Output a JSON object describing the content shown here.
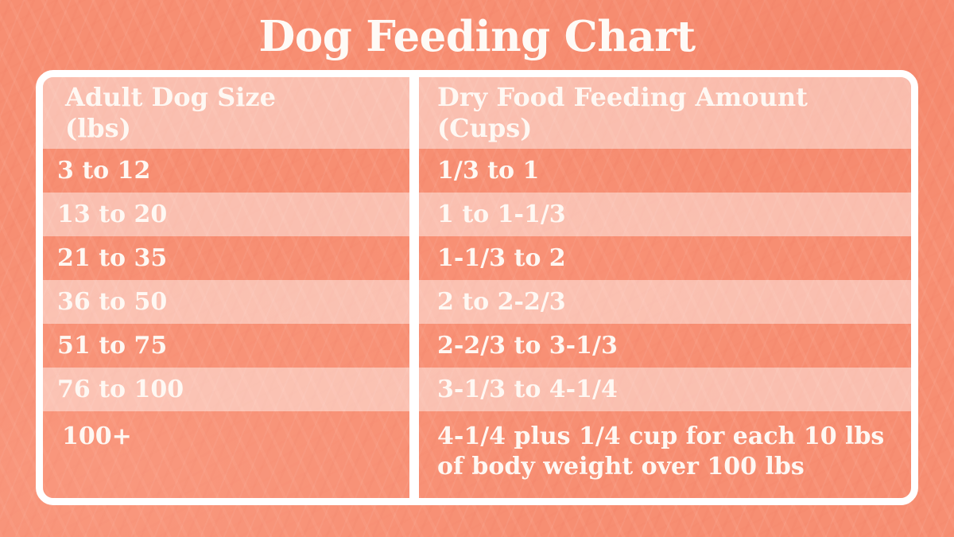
{
  "page": {
    "title": "Dog Feeding Chart"
  },
  "colors": {
    "background_coral": "#F78E72",
    "light_band": "#FBBFAE",
    "frame_white": "#FFFFFF",
    "text_white": "#FEF8F3"
  },
  "chart_data": {
    "type": "table",
    "title": "Dog Feeding Chart",
    "columns": [
      {
        "header_line1": "Adult Dog Size",
        "header_line2": "(lbs)"
      },
      {
        "header_line1": "Dry Food Feeding Amount",
        "header_line2": "(Cups)"
      }
    ],
    "rows": [
      {
        "size": "3 to 12",
        "amount": "1/3 to 1"
      },
      {
        "size": "13 to 20",
        "amount": "1 to 1-1/3"
      },
      {
        "size": "21 to 35",
        "amount": "1-1/3 to 2"
      },
      {
        "size": "36 to 50",
        "amount": "2 to 2-2/3"
      },
      {
        "size": "51 to 75",
        "amount": "2-2/3 to 3-1/3"
      },
      {
        "size": "76 to 100",
        "amount": "3-1/3 to 4-1/4"
      },
      {
        "size": "100+",
        "amount": "4-1/4 plus 1/4 cup for each 10 lbs of body weight over 100 lbs"
      }
    ]
  }
}
